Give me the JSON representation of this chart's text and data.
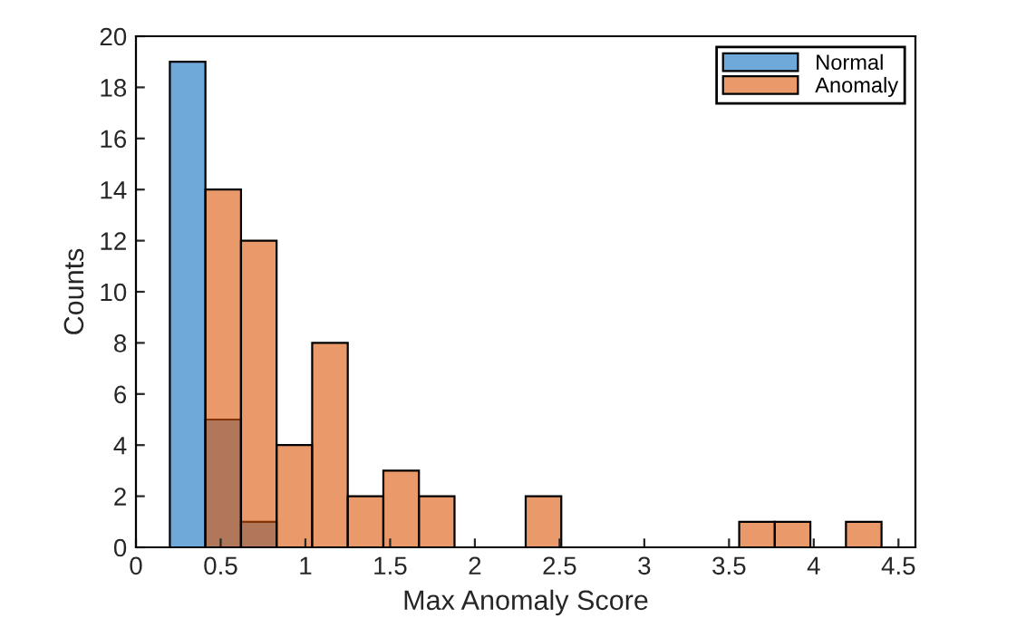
{
  "chart_data": {
    "type": "histogram",
    "xlabel": "Max Anomaly Score",
    "ylabel": "Counts",
    "bins": [
      0.2,
      0.41,
      0.62,
      0.83,
      1.04,
      1.25,
      1.46,
      1.67,
      1.88,
      2.09,
      2.3,
      2.51,
      2.72,
      2.93,
      3.14,
      3.35,
      3.56,
      3.77,
      3.98,
      4.19,
      4.4
    ],
    "series": [
      {
        "name": "Normal",
        "color": "#6fa9d9",
        "values": [
          19,
          5,
          1,
          0,
          0,
          0,
          0,
          0,
          0,
          0,
          0,
          0,
          0,
          0,
          0,
          0,
          0,
          0,
          0,
          0
        ]
      },
      {
        "name": "Anomaly",
        "color": "#ea9a6a",
        "values": [
          0,
          14,
          12,
          4,
          8,
          2,
          3,
          2,
          0,
          0,
          2,
          0,
          0,
          0,
          0,
          0,
          1,
          1,
          0,
          1
        ]
      }
    ],
    "xlim": [
      0,
      4.6
    ],
    "xticks": [
      0,
      0.5,
      1,
      1.5,
      2,
      2.5,
      3,
      3.5,
      4,
      4.5
    ],
    "ylim": [
      0,
      20
    ],
    "yticks": [
      0,
      2,
      4,
      6,
      8,
      10,
      12,
      14,
      16,
      18,
      20
    ],
    "legend": "top right",
    "grid": false
  }
}
